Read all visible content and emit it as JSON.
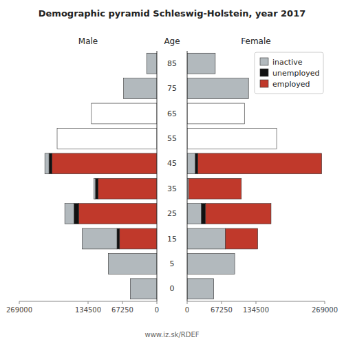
{
  "chart_data": [
    {
      "type": "bar",
      "orientation": "horizontal",
      "stacked": true,
      "title": "Demographic pyramid Schleswig-Holstein, year 2017",
      "xlabel": "Male",
      "ylabel": "Age",
      "annotations": [
        "www.iz.sk/RDEF"
      ],
      "categories": [
        "0",
        "5",
        "15",
        "25",
        "35",
        "45",
        "55",
        "65",
        "75",
        "85"
      ],
      "xlim": [
        0,
        269000
      ],
      "xticks": [
        0,
        67250,
        134500,
        269000
      ],
      "series": [
        {
          "name": "employed",
          "color": "#c0392b",
          "values": [
            0,
            0,
            73000,
            153000,
            115000,
            205000,
            0,
            0,
            0,
            0
          ]
        },
        {
          "name": "unemployed",
          "color": "#111111",
          "values": [
            0,
            0,
            5000,
            9000,
            5000,
            6000,
            0,
            0,
            0,
            0
          ]
        },
        {
          "name": "inactive",
          "colors": [
            "#b2b9bd",
            "#b2b9bd",
            "#b2b9bd",
            "#b2b9bd",
            "#b2b9bd",
            "#b2b9bd",
            "#ffffff",
            "#ffffff",
            "#b2b9bd",
            "#b2b9bd"
          ],
          "values": [
            52000,
            95000,
            68000,
            18000,
            3000,
            8000,
            195000,
            128000,
            65000,
            20000
          ]
        }
      ]
    },
    {
      "type": "bar",
      "orientation": "horizontal",
      "stacked": true,
      "xlabel": "Female",
      "legend": "upper right",
      "categories": [
        "0",
        "5",
        "15",
        "25",
        "35",
        "45",
        "55",
        "65",
        "75",
        "85"
      ],
      "xlim": [
        0,
        269000
      ],
      "xticks": [
        0,
        67250,
        134500,
        269000
      ],
      "series": [
        {
          "name": "inactive",
          "colors": [
            "#b2b9bd",
            "#b2b9bd",
            "#b2b9bd",
            "#b2b9bd",
            "#b2b9bd",
            "#b2b9bd",
            "#ffffff",
            "#ffffff",
            "#b2b9bd",
            "#b2b9bd"
          ],
          "values": [
            52000,
            93000,
            75000,
            28000,
            3000,
            16000,
            175000,
            112000,
            120000,
            55000
          ]
        },
        {
          "name": "unemployed",
          "color": "#111111",
          "values": [
            0,
            0,
            0,
            8000,
            0,
            5000,
            0,
            0,
            0,
            0
          ]
        },
        {
          "name": "employed",
          "color": "#c0392b",
          "values": [
            0,
            0,
            63000,
            128000,
            103000,
            242000,
            0,
            0,
            0,
            0
          ]
        }
      ]
    }
  ]
}
